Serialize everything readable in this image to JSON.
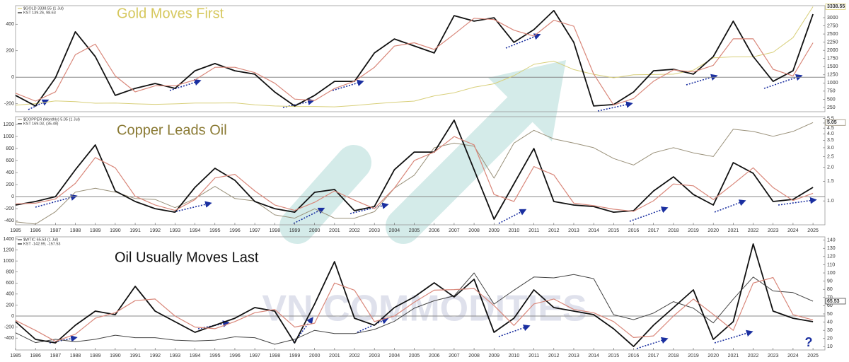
{
  "chart_data": [
    {
      "type": "line",
      "title": "Gold Moves First",
      "title_color": "#d6c85e",
      "xlim": [
        1985,
        2025.6
      ],
      "x": [
        1985,
        1986,
        1987,
        1988,
        1989,
        1990,
        1991,
        1992,
        1993,
        1994,
        1995,
        1996,
        1997,
        1998,
        1999,
        2000,
        2001,
        2002,
        2003,
        2004,
        2005,
        2006,
        2007,
        2008,
        2009,
        2010,
        2011,
        2012,
        2013,
        2014,
        2015,
        2016,
        2017,
        2018,
        2019,
        2020,
        2021,
        2022,
        2023,
        2024,
        2025
      ],
      "ylim": [
        -260,
        540
      ],
      "yticks": [
        -200,
        0,
        200,
        400
      ],
      "y2lim": [
        120,
        3368
      ],
      "y2ticks": [
        250,
        500,
        750,
        1000,
        1250,
        1500,
        1750,
        2000,
        2250,
        2500,
        2750,
        3000
      ],
      "zero_line": true,
      "series": [
        {
          "name": "$GOLD 3338.55 (1 Jul)",
          "color": "#d8cf7a",
          "axis": "y2",
          "flag_last": true,
          "values": [
            320,
            370,
            450,
            430,
            380,
            385,
            360,
            345,
            360,
            385,
            385,
            390,
            330,
            295,
            280,
            280,
            270,
            310,
            365,
            410,
            445,
            605,
            700,
            870,
            975,
            1225,
            1570,
            1670,
            1410,
            1265,
            1160,
            1250,
            1260,
            1270,
            1390,
            1770,
            1800,
            1800,
            1940,
            2390,
            3338.55
          ]
        },
        {
          "name": "KST 139.26, 98.63",
          "color": "#111111",
          "values": [
            -137,
            -217,
            -4,
            343,
            156,
            -137,
            -84,
            -47,
            -84,
            49,
            103,
            49,
            23,
            -111,
            -217,
            -137,
            -31,
            -31,
            183,
            289,
            236,
            183,
            465,
            423,
            449,
            263,
            359,
            503,
            263,
            -217,
            -206,
            -111,
            49,
            60,
            23,
            156,
            423,
            156,
            -31,
            49,
            476
          ]
        },
        {
          "color": "#d9877a",
          "values": [
            -120,
            -180,
            -110,
            170,
            250,
            10,
            -110,
            -65,
            -65,
            -20,
            75,
            75,
            35,
            -45,
            -165,
            -175,
            -85,
            -30,
            75,
            235,
            260,
            210,
            325,
            445,
            435,
            355,
            310,
            430,
            385,
            25,
            -210,
            -160,
            -30,
            55,
            40,
            90,
            290,
            290,
            60,
            10,
            260
          ]
        }
      ]
    },
    {
      "type": "line",
      "title": "Copper Leads Oil",
      "title_color": "#8a7a34",
      "xlim": [
        1985,
        2025.6
      ],
      "x": [
        1985,
        1986,
        1987,
        1988,
        1989,
        1990,
        1991,
        1992,
        1993,
        1994,
        1995,
        1996,
        1997,
        1998,
        1999,
        2000,
        2001,
        2002,
        2003,
        2004,
        2005,
        2006,
        2007,
        2008,
        2009,
        2010,
        2011,
        2012,
        2013,
        2014,
        2015,
        2016,
        2017,
        2018,
        2019,
        2020,
        2021,
        2022,
        2023,
        2024,
        2025
      ],
      "xticks": [
        1985,
        1986,
        1987,
        1988,
        1989,
        1990,
        1991,
        1992,
        1993,
        1994,
        1995,
        1996,
        1997,
        1998,
        1999,
        2000,
        2001,
        2002,
        2003,
        2004,
        2005,
        2006,
        2007,
        2008,
        2009,
        2010,
        2011,
        2012,
        2013,
        2014,
        2015,
        2016,
        2017,
        2018,
        2019,
        2020,
        2021,
        2022,
        2023,
        2024,
        2025
      ],
      "ylim": [
        -470,
        1330
      ],
      "yticks": [
        -400,
        -200,
        0,
        200,
        400,
        600,
        800,
        1000,
        1200
      ],
      "y2lim": [
        0.61,
        5.7
      ],
      "y2log": true,
      "y2ticks": [
        {
          "value": 1,
          "label": "1.0"
        },
        1.5,
        {
          "value": 2,
          "label": "2.0"
        },
        2.5,
        {
          "value": 3,
          "label": "3.0"
        },
        3.5,
        {
          "value": 4,
          "label": "4.0"
        },
        4.5,
        {
          "value": 5,
          "label": "5.0"
        },
        5.5
      ],
      "zero_line": true,
      "series": [
        {
          "name": "$COPPER (Monthly) 5.05 (1 Jul)",
          "color": "#9a917a",
          "axis": "y2",
          "flag_last": true,
          "values": [
            0.65,
            0.62,
            0.8,
            1.2,
            1.3,
            1.2,
            1.05,
            1.03,
            0.87,
            1.05,
            1.35,
            1.05,
            1.0,
            0.75,
            0.7,
            0.85,
            0.7,
            0.7,
            0.8,
            1.3,
            1.7,
            3.0,
            3.3,
            3.1,
            1.6,
            3.3,
            4.3,
            3.6,
            3.3,
            3.0,
            2.4,
            2.1,
            2.7,
            3.0,
            2.7,
            2.5,
            4.4,
            4.2,
            3.8,
            4.2,
            5.05
          ]
        },
        {
          "name": "KST 169.03, (35.49)",
          "color": "#111111",
          "values": [
            -141,
            -82,
            0,
            447,
            859,
            94,
            -82,
            -200,
            -259,
            153,
            471,
            271,
            -82,
            -200,
            -259,
            71,
            118,
            -235,
            -165,
            447,
            741,
            741,
            1271,
            447,
            -376,
            212,
            800,
            -82,
            -141,
            -165,
            -259,
            -235,
            94,
            329,
            35,
            -141,
            565,
            388,
            -82,
            -47,
            153
          ]
        },
        {
          "color": "#d9877a",
          "values": [
            -120,
            -110,
            -40,
            220,
            650,
            480,
            5,
            -140,
            -230,
            -50,
            310,
            370,
            95,
            -140,
            -230,
            -95,
            95,
            -60,
            -200,
            140,
            600,
            740,
            1000,
            860,
            35,
            -80,
            500,
            360,
            -110,
            -150,
            -210,
            -245,
            -70,
            210,
            180,
            -50,
            210,
            480,
            150,
            -65,
            55
          ]
        }
      ]
    },
    {
      "type": "line",
      "title": "Oil Usually Moves Last",
      "title_color": "#111111",
      "xlim": [
        1985,
        2025.6
      ],
      "x": [
        1985,
        1986,
        1987,
        1988,
        1989,
        1990,
        1991,
        1992,
        1993,
        1994,
        1995,
        1996,
        1997,
        1998,
        1999,
        2000,
        2001,
        2002,
        2003,
        2004,
        2005,
        2006,
        2007,
        2008,
        2009,
        2010,
        2011,
        2012,
        2013,
        2014,
        2015,
        2016,
        2017,
        2018,
        2019,
        2020,
        2021,
        2022,
        2023,
        2024,
        2025
      ],
      "xticks": [
        1985,
        1986,
        1987,
        1988,
        1989,
        1990,
        1991,
        1992,
        1993,
        1994,
        1995,
        1996,
        1997,
        1998,
        1999,
        2000,
        2001,
        2002,
        2003,
        2004,
        2005,
        2006,
        2007,
        2008,
        2009,
        2010,
        2011,
        2012,
        2013,
        2014,
        2015,
        2016,
        2017,
        2018,
        2019,
        2020,
        2021,
        2022,
        2023,
        2024,
        2025
      ],
      "ylim": [
        -616,
        1438
      ],
      "yticks": [
        -400,
        -200,
        0,
        200,
        400,
        600,
        800,
        1000,
        1200,
        1400
      ],
      "y2lim": [
        6,
        144
      ],
      "y2ticks": [
        10,
        20,
        30,
        40,
        50,
        60,
        70,
        80,
        90,
        100,
        110,
        120,
        130,
        140
      ],
      "zero_line": true,
      "annotations": [
        "?"
      ],
      "series": [
        {
          "name": "$WTIC 65.53 (1 Jul)",
          "color": "#444444",
          "axis": "y2",
          "flag_last": true,
          "values": [
            27,
            15,
            19,
            16,
            19,
            24,
            21,
            21,
            18,
            17,
            18,
            22,
            21,
            13,
            19,
            30,
            26,
            26,
            31,
            41,
            57,
            66,
            72,
            100,
            62,
            79,
            95,
            94,
            98,
            93,
            49,
            43,
            51,
            65,
            57,
            39,
            68,
            95,
            78,
            76,
            65.53
          ]
        },
        {
          "name": "KST -142.99, -157.53",
          "color": "#111111",
          "values": [
            -103,
            -424,
            -488,
            -167,
            90,
            26,
            539,
            90,
            -103,
            -295,
            -167,
            -39,
            154,
            90,
            -488,
            218,
            988,
            -39,
            -167,
            154,
            347,
            603,
            347,
            668,
            -295,
            -39,
            475,
            154,
            90,
            26,
            -231,
            -552,
            -167,
            154,
            475,
            -424,
            -103,
            1309,
            90,
            -39,
            -103
          ]
        },
        {
          "color": "#d9877a",
          "values": [
            -80,
            -260,
            -460,
            -330,
            -40,
            60,
            280,
            310,
            0,
            -200,
            -230,
            -100,
            60,
            120,
            -200,
            -130,
            600,
            470,
            -100,
            0,
            250,
            470,
            480,
            500,
            190,
            -170,
            220,
            310,
            120,
            60,
            -100,
            -390,
            -360,
            0,
            310,
            30,
            -260,
            600,
            700,
            25,
            -70
          ]
        }
      ]
    }
  ],
  "watermark": "VN COMMODITIES"
}
